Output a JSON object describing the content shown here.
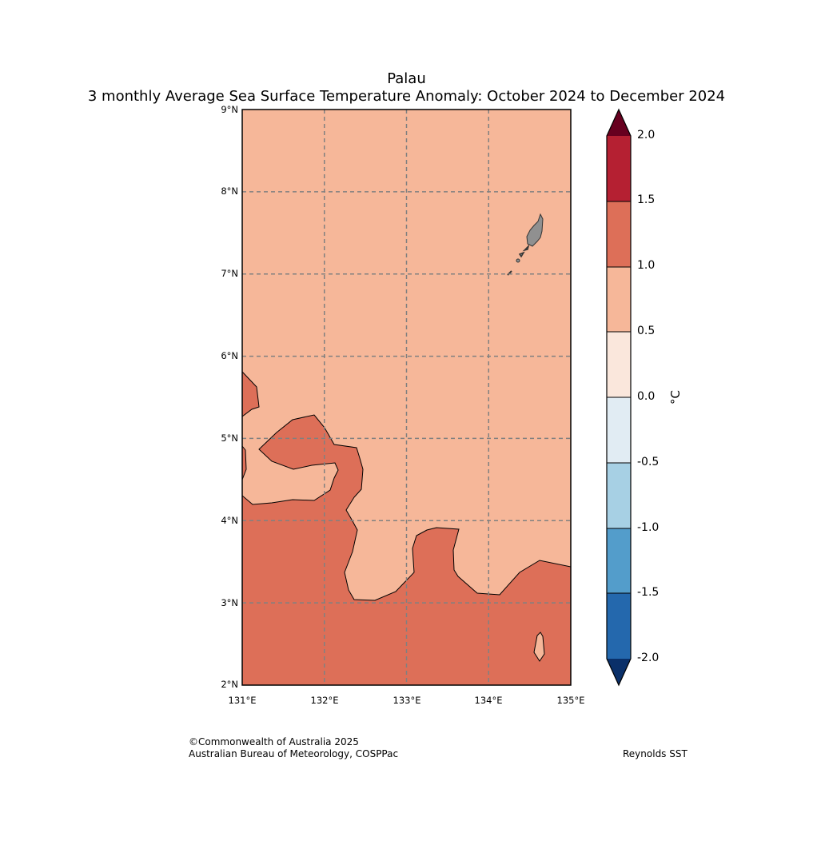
{
  "title": "Palau",
  "subtitle": "3 monthly Average Sea Surface Temperature Anomaly: October 2024 to December 2024",
  "latitude_labels": [
    "9°N",
    "8°N",
    "7°N",
    "6°N",
    "5°N",
    "4°N",
    "3°N",
    "2°N"
  ],
  "longitude_labels": [
    "131°E",
    "132°E",
    "133°E",
    "134°E",
    "135°E"
  ],
  "colorbar": {
    "unit": "°C",
    "tick_labels": [
      "2.0",
      "1.5",
      "1.0",
      "0.5",
      "0.0",
      "-0.5",
      "-1.0",
      "-1.5",
      "-2.0"
    ],
    "colors": {
      "above_2.0": "#67001f",
      "1.5_to_2.0": "#b52032",
      "1.0_to_1.5": "#dd6f58",
      "0.5_to_1.0": "#f6b799",
      "0.0_to_0.5": "#fae7dc",
      "-0.5_to_0.0": "#e1ecf3",
      "-1.0_to_-0.5": "#a7d0e4",
      "-1.5_to_-1.0": "#539dcb",
      "-2.0_to_-1.5": "#2468ad",
      "below_-2.0": "#0a3069"
    }
  },
  "map": {
    "extent": {
      "lon": [
        131,
        135
      ],
      "lat": [
        2,
        9
      ]
    },
    "dominant_anomaly_range": "0.5_to_1.0",
    "warm_regions_range": "1.0_to_1.5",
    "land_color": "#909090",
    "gridline_color": "#808080"
  },
  "credits": {
    "line1": "©Commonwealth of Australia 2025",
    "line2": "Australian Bureau of Meteorology, COSPPac",
    "source": "Reynolds SST"
  }
}
